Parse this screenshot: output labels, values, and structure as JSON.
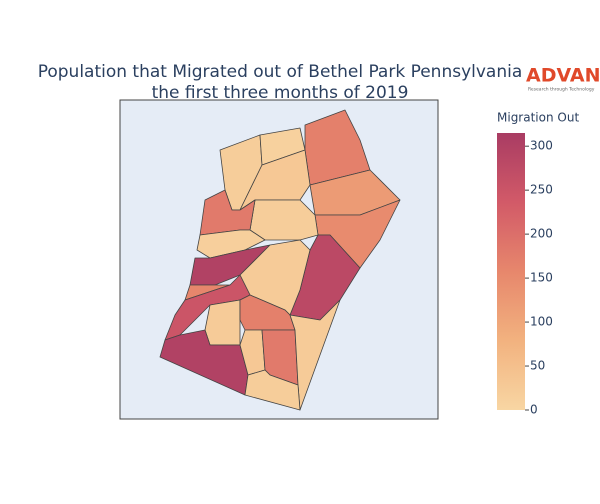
{
  "chart_data": {
    "type": "choropleth",
    "title": [
      "Population that Migrated out of Bethel Park Pennsylvania",
      "the first three months of 2019"
    ],
    "logo": {
      "name": "ADVAN",
      "tagline": "Research through Technology"
    },
    "colorbar_title": "Migration Out",
    "colorscale": [
      "#f8d6a3",
      "#f2b27f",
      "#e7876c",
      "#d25a68",
      "#a93c63"
    ],
    "zlim": [
      0,
      315
    ],
    "zticks": [
      0,
      50,
      100,
      150,
      200,
      250,
      300
    ],
    "values": [
      20,
      10,
      170,
      120,
      150,
      280,
      30,
      20,
      180,
      15,
      300,
      25,
      160,
      250,
      25,
      300,
      170,
      30,
      180,
      25,
      20
    ]
  }
}
